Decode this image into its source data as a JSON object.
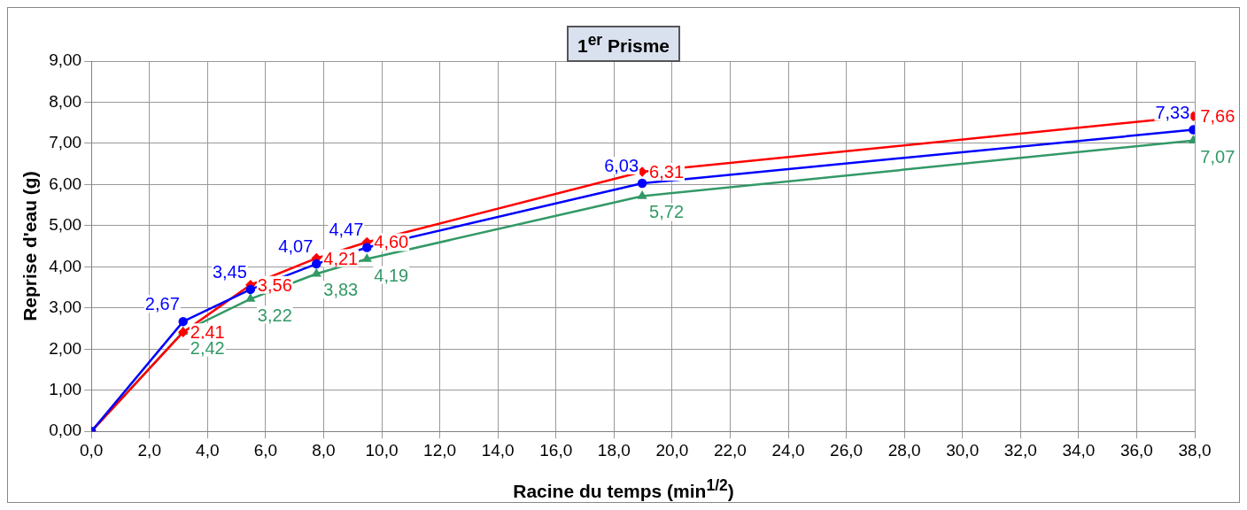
{
  "chart_data": {
    "type": "line",
    "title": "1$^{er}$ Prisme",
    "xlabel": "Racine du temps (min$^{1/2}$)",
    "ylabel": "Reprise d'eau (g)",
    "xlim": [
      0,
      38
    ],
    "xticks": [
      {
        "value": 0,
        "label": "0,0"
      },
      {
        "value": 2,
        "label": "2,0"
      },
      {
        "value": 4,
        "label": "4,0"
      },
      {
        "value": 6,
        "label": "6,0"
      },
      {
        "value": 8,
        "label": "8,0"
      },
      {
        "value": 10,
        "label": "10,0"
      },
      {
        "value": 12,
        "label": "12,0"
      },
      {
        "value": 14,
        "label": "14,0"
      },
      {
        "value": 16,
        "label": "16,0"
      },
      {
        "value": 18,
        "label": "18,0"
      },
      {
        "value": 20,
        "label": "20,0"
      },
      {
        "value": 22,
        "label": "22,0"
      },
      {
        "value": 24,
        "label": "24,0"
      },
      {
        "value": 26,
        "label": "26,0"
      },
      {
        "value": 28,
        "label": "28,0"
      },
      {
        "value": 30,
        "label": "30,0"
      },
      {
        "value": 32,
        "label": "32,0"
      },
      {
        "value": 34,
        "label": "34,0"
      },
      {
        "value": 36,
        "label": "36,0"
      },
      {
        "value": 38,
        "label": "38,0"
      }
    ],
    "ylim": [
      0,
      9
    ],
    "yticks": [
      {
        "value": 0,
        "label": "0,00"
      },
      {
        "value": 1,
        "label": "1,00"
      },
      {
        "value": 2,
        "label": "2,00"
      },
      {
        "value": 3,
        "label": "3,00"
      },
      {
        "value": 4,
        "label": "4,00"
      },
      {
        "value": 5,
        "label": "5,00"
      },
      {
        "value": 6,
        "label": "6,00"
      },
      {
        "value": 7,
        "label": "7,00"
      },
      {
        "value": 8,
        "label": "8,00"
      },
      {
        "value": 9,
        "label": "9,00"
      }
    ],
    "x": [
      0,
      3.16,
      5.48,
      7.75,
      9.49,
      18.97,
      37.95
    ],
    "grid": true,
    "legend": false,
    "line_style": "solid",
    "series": [
      {
        "color": "#0000ff",
        "marker": "circle",
        "values": [
          0,
          2.67,
          3.45,
          4.07,
          4.47,
          6.03,
          7.33
        ],
        "value_labels": [
          null,
          "2,67",
          "3,45",
          "4,07",
          "4,47",
          "6,03",
          "7,33"
        ]
      },
      {
        "color": "#ff0000",
        "marker": "diamond",
        "values": [
          0,
          2.41,
          3.56,
          4.21,
          4.6,
          6.31,
          7.66
        ],
        "value_labels": [
          null,
          "2,41",
          "3,56",
          "4,21",
          "4,60",
          "6,31",
          "7,66"
        ]
      },
      {
        "color": "#339966",
        "marker": "triangle",
        "values": [
          0,
          2.42,
          3.22,
          3.83,
          4.19,
          5.72,
          7.07
        ],
        "value_labels": [
          null,
          "2,42",
          "3,22",
          "3,83",
          "4,19",
          "5,72",
          "7,07"
        ]
      }
    ]
  }
}
